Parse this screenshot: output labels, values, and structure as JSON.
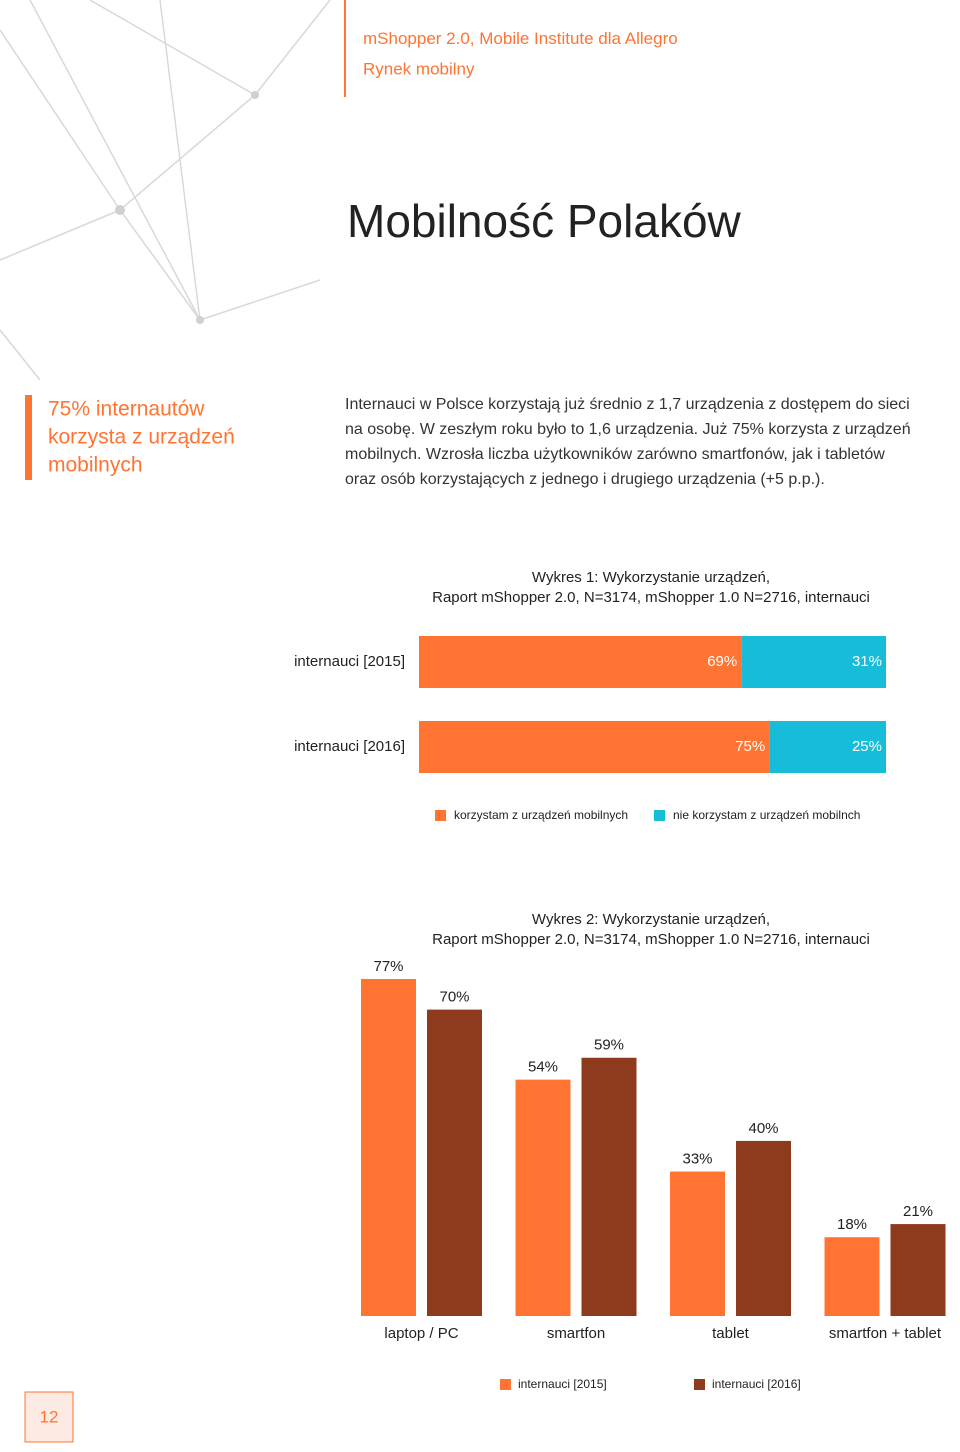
{
  "header": {
    "brand_prefix": "m",
    "brand": "Shopper 2.0, Mobile Institute dla Allegro",
    "section": "Rynek mobilny"
  },
  "title": "Mobilność Polaków",
  "sidebar": [
    "75% internautów",
    "korzysta z urządzeń",
    "mobilnych"
  ],
  "body": [
    "Internauci w Polsce korzystają już średnio z 1,7 urządzenia z dostępem do sieci",
    "na osobę. W zeszłym roku było to 1,6 urządzenia. Już 75% korzysta z urządzeń",
    "mobilnych. Wzrosła liczba użytkowników zarówno smartfonów, jak i tabletów",
    "oraz osób korzystających z jednego i drugiego urządzenia (+5 p.p.)."
  ],
  "page_number": "12",
  "chart_data": [
    {
      "type": "hbar",
      "stacked": true,
      "title": "Wykres 1: Wykorzystanie urządzeń,",
      "subtitle": "Raport mShopper 2.0, N=3174, mShopper 1.0 N=2716, internauci",
      "categories": [
        "internauci [2015]",
        "internauci [2016]"
      ],
      "series": [
        {
          "name": "korzystam z urządzeń mobilnych",
          "color": "#ff7433",
          "values": [
            69,
            75
          ],
          "value_labels": [
            "69%",
            "75%"
          ]
        },
        {
          "name": "nie korzystam z urządzeń mobilnch",
          "color": "#17bcd8",
          "values": [
            31,
            25
          ],
          "value_labels": [
            "31%",
            "25%"
          ]
        }
      ],
      "xlim": [
        0,
        100
      ]
    },
    {
      "type": "bar",
      "title": "Wykres 2: Wykorzystanie urządzeń,",
      "subtitle": "Raport mShopper 2.0, N=3174, mShopper 1.0 N=2716, internauci",
      "categories": [
        "laptop / PC",
        "smartfon",
        "tablet",
        "smartfon + tablet"
      ],
      "series": [
        {
          "name": "internauci [2015]",
          "color": "#ff7433",
          "values": [
            77,
            54,
            33,
            18
          ],
          "value_labels": [
            "77%",
            "54%",
            "33%",
            "18%"
          ]
        },
        {
          "name": "internauci [2016]",
          "color": "#8e3a1c",
          "values": [
            70,
            59,
            40,
            21
          ],
          "value_labels": [
            "70%",
            "59%",
            "40%",
            "21%"
          ]
        }
      ],
      "ylim": [
        0,
        100
      ]
    }
  ]
}
